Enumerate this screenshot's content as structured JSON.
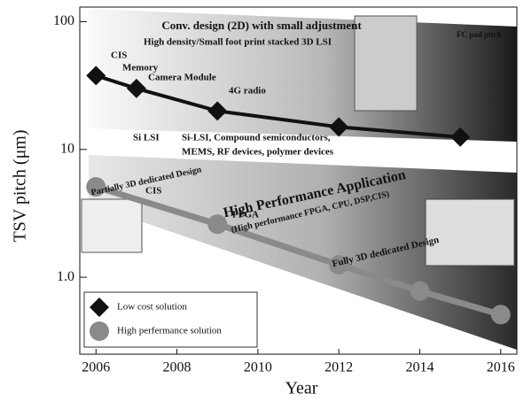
{
  "chart_data": {
    "type": "line",
    "x_label": "Year",
    "y_label": "TSV pitch (μm)",
    "xlim": [
      2005.6,
      2016.4
    ],
    "xticks": [
      2006,
      2008,
      2010,
      2012,
      2014,
      2016
    ],
    "ylim": [
      0.25,
      130
    ],
    "yscale": "log",
    "yticks": [
      {
        "value": 1,
        "label": "1.0"
      },
      10,
      100
    ],
    "legend": "lower left",
    "series": [
      {
        "name": "Low cost solution",
        "color": "#111111",
        "marker": "diamond",
        "x": [
          2006,
          2007,
          2009,
          2012,
          2015
        ],
        "values": [
          37.8,
          30,
          20,
          15,
          12.5
        ]
      },
      {
        "name": "High perfermance solution",
        "color": "#8a8a8a",
        "marker": "circle",
        "x": [
          2006,
          2009,
          2012,
          2014,
          2016
        ],
        "values": [
          5.1,
          2.6,
          1.25,
          0.78,
          0.51
        ]
      }
    ],
    "annotations": [
      "Conv. design (2D) with small adjustment",
      "High density/Small foot print stacked 3D LSI",
      "CIS",
      "Memory",
      "Camera Module",
      "4G radio",
      "FC pad pitch",
      "Si LSI",
      "Si-LSI, Compound semiconductors,",
      "MEMS, RF devices, polymer devices",
      "High Performance Application",
      "(High performance FPGA, CPU, DSP,CIS)",
      "Partially 3D dedicated Design",
      "CIS",
      "FPGA",
      "Fully 3D dedicated Design"
    ]
  }
}
